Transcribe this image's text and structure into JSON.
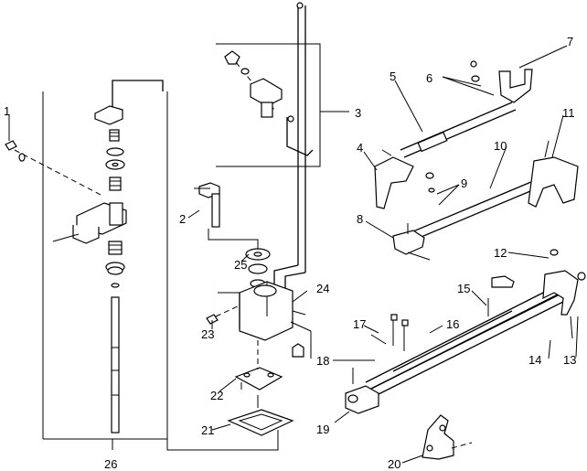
{
  "callouts": {
    "c1": "1",
    "c2": "2",
    "c3": "3",
    "c4": "4",
    "c5": "5",
    "c6": "6",
    "c7": "7",
    "c8": "8",
    "c9": "9",
    "c10": "10",
    "c11": "11",
    "c12": "12",
    "c13": "13",
    "c14": "14",
    "c15": "15",
    "c16": "16",
    "c17": "17",
    "c18": "18",
    "c19": "19",
    "c20": "20",
    "c21": "21",
    "c22": "22",
    "c23": "23",
    "c24": "24",
    "c25": "25",
    "c26": "26"
  }
}
